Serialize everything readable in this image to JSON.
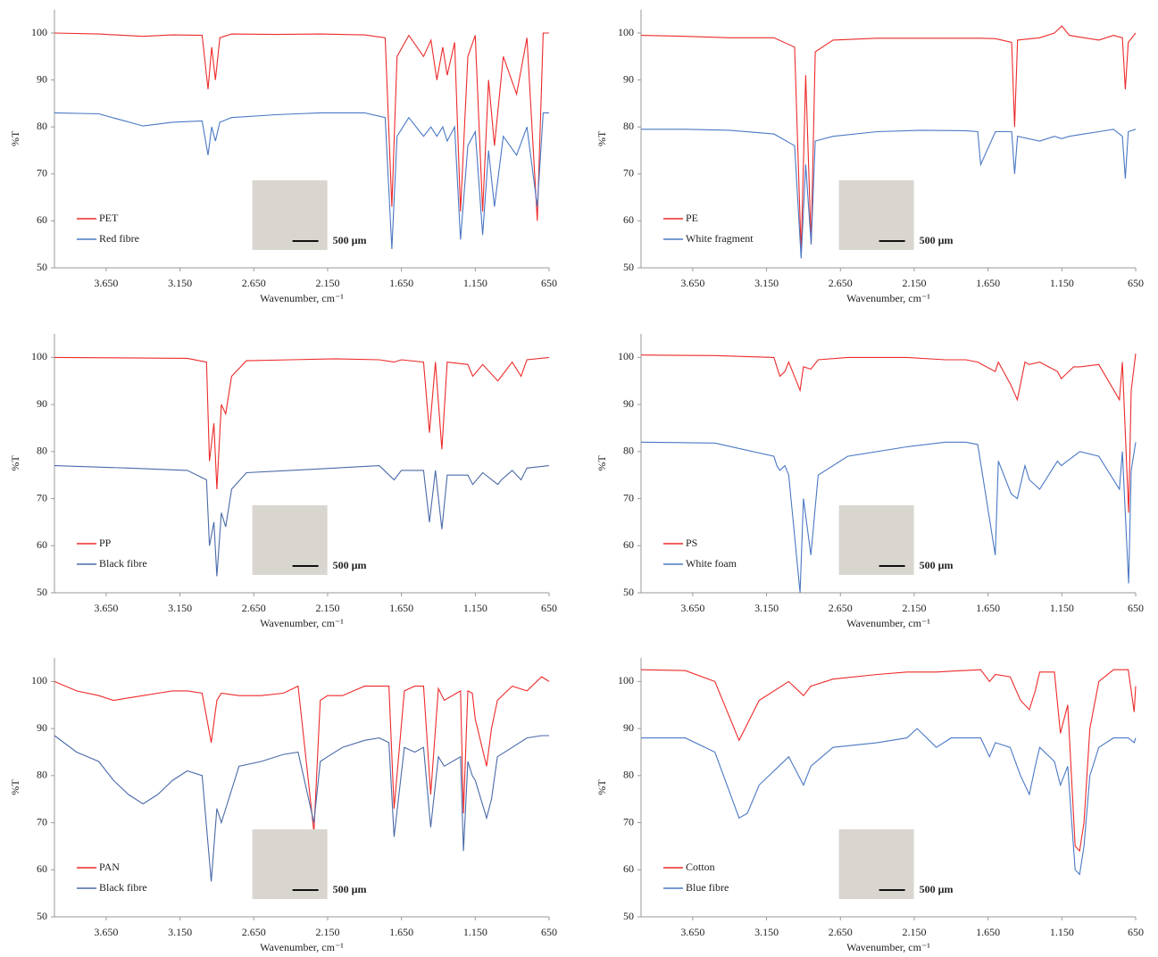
{
  "chart_data": [
    {
      "type": "line",
      "xlabel": "Wavenumber, cm⁻¹",
      "ylabel": "%T",
      "annotation": "500 µm",
      "legend": "lower left",
      "xlim": [
        4000,
        650
      ],
      "ylim": [
        50,
        105
      ],
      "xticks": [
        {
          "value": 3650,
          "label": "3.650"
        },
        {
          "value": 3150,
          "label": "3.150"
        },
        {
          "value": 2650,
          "label": "2.650"
        },
        {
          "value": 2150,
          "label": "2.150"
        },
        {
          "value": 1650,
          "label": "1.650"
        },
        {
          "value": 1150,
          "label": "1.150"
        },
        650
      ],
      "yticks": [
        50,
        60,
        70,
        80,
        90,
        100
      ],
      "x": [
        4000,
        3700,
        3400,
        3200,
        3000,
        2960,
        2935,
        2910,
        2880,
        2800,
        2500,
        2200,
        1900,
        1760,
        1715,
        1680,
        1600,
        1500,
        1450,
        1410,
        1370,
        1340,
        1290,
        1250,
        1200,
        1150,
        1100,
        1060,
        1020,
        960,
        870,
        800,
        730,
        690,
        650
      ],
      "series": [
        {
          "name": "PET",
          "color": "#ee2a2a",
          "values": [
            100,
            99.8,
            99.3,
            99.6,
            99.5,
            88,
            97,
            90,
            99,
            99.8,
            99.7,
            99.8,
            99.6,
            99,
            63,
            95,
            99.5,
            95,
            98.5,
            90,
            97,
            91,
            98,
            62,
            95,
            99.5,
            62,
            90,
            76,
            95,
            87,
            99,
            60,
            100,
            100
          ]
        },
        {
          "name": "Red fibre",
          "color": "#4a78c4",
          "values": [
            83,
            82.8,
            80.2,
            81,
            81.3,
            74,
            80,
            77,
            81,
            82,
            82.6,
            83,
            83,
            82,
            54,
            78,
            82,
            78,
            80,
            78,
            80,
            77,
            80,
            56,
            76,
            79,
            57,
            75,
            63,
            78,
            74,
            80,
            63,
            83,
            83
          ]
        }
      ]
    },
    {
      "type": "line",
      "xlabel": "Wavenumber, cm⁻¹",
      "ylabel": "%T",
      "annotation": "500 µm",
      "legend": "lower left",
      "xlim": [
        4000,
        650
      ],
      "ylim": [
        50,
        105
      ],
      "xticks": [
        {
          "value": 3650,
          "label": "3.650"
        },
        {
          "value": 3150,
          "label": "3.150"
        },
        {
          "value": 2650,
          "label": "2.650"
        },
        {
          "value": 2150,
          "label": "2.150"
        },
        {
          "value": 1650,
          "label": "1.650"
        },
        {
          "value": 1150,
          "label": "1.150"
        },
        650
      ],
      "yticks": [
        50,
        60,
        70,
        80,
        90,
        100
      ],
      "x": [
        4000,
        3700,
        3400,
        3100,
        2960,
        2916,
        2885,
        2848,
        2820,
        2700,
        2400,
        2100,
        1800,
        1720,
        1700,
        1600,
        1490,
        1470,
        1450,
        1300,
        1200,
        1150,
        1100,
        1000,
        900,
        800,
        740,
        720,
        700,
        650
      ],
      "series": [
        {
          "name": "PE",
          "color": "#ee2a2a",
          "values": [
            99.5,
            99.3,
            99,
            99,
            97,
            53,
            91,
            55,
            96,
            98.5,
            98.9,
            98.9,
            98.9,
            98.9,
            98.9,
            98.8,
            98,
            80,
            98.5,
            99,
            100,
            101.5,
            99.5,
            99,
            98.5,
            99.5,
            99,
            88,
            98,
            100
          ]
        },
        {
          "name": "White fragment",
          "color": "#4a78c4",
          "values": [
            79.5,
            79.5,
            79.3,
            78.5,
            76,
            52,
            72,
            55,
            77,
            78,
            79,
            79.3,
            79.2,
            79,
            72,
            79,
            79,
            70,
            78,
            77,
            78,
            77.5,
            78,
            78.5,
            79,
            79.5,
            78,
            69,
            79,
            79.5
          ]
        }
      ]
    },
    {
      "type": "line",
      "xlabel": "Wavenumber, cm⁻¹",
      "ylabel": "%T",
      "annotation": "500 µm",
      "legend": "lower left",
      "xlim": [
        4000,
        650
      ],
      "ylim": [
        50,
        105
      ],
      "xticks": [
        {
          "value": 3650,
          "label": "3.650"
        },
        {
          "value": 3150,
          "label": "3.150"
        },
        {
          "value": 2650,
          "label": "2.650"
        },
        {
          "value": 2150,
          "label": "2.150"
        },
        {
          "value": 1650,
          "label": "1.650"
        },
        {
          "value": 1150,
          "label": "1.150"
        },
        650
      ],
      "yticks": [
        50,
        60,
        70,
        80,
        90,
        100
      ],
      "x": [
        4000,
        3500,
        3100,
        2970,
        2950,
        2920,
        2900,
        2870,
        2840,
        2800,
        2700,
        2400,
        2100,
        1800,
        1700,
        1650,
        1500,
        1460,
        1420,
        1376,
        1340,
        1200,
        1167,
        1100,
        997,
        973,
        900,
        840,
        800,
        650
      ],
      "series": [
        {
          "name": "PP",
          "color": "#ee2a2a",
          "values": [
            100,
            99.9,
            99.8,
            99,
            78,
            86,
            72,
            90,
            88,
            96,
            99.3,
            99.5,
            99.7,
            99.5,
            99,
            99.5,
            99,
            84,
            99,
            80.5,
            99,
            98.5,
            96,
            98.5,
            95,
            96,
            99,
            96,
            99.5,
            100
          ]
        },
        {
          "name": "Black fibre",
          "color": "#4a6aa8",
          "values": [
            77,
            76.5,
            76,
            74,
            60,
            65,
            53.5,
            67,
            64,
            72,
            75.5,
            76,
            76.5,
            77,
            74,
            76,
            76,
            65,
            76,
            63.5,
            75,
            75,
            73,
            75.5,
            73,
            74,
            76,
            74,
            76.5,
            77
          ]
        }
      ]
    },
    {
      "type": "line",
      "xlabel": "Wavenumber, cm⁻¹",
      "ylabel": "%T",
      "annotation": "500 µm",
      "legend": "lower left",
      "xlim": [
        4000,
        650
      ],
      "ylim": [
        50,
        105
      ],
      "xticks": [
        {
          "value": 3650,
          "label": "3.650"
        },
        {
          "value": 3150,
          "label": "3.150"
        },
        {
          "value": 2650,
          "label": "2.650"
        },
        {
          "value": 2150,
          "label": "2.150"
        },
        {
          "value": 1650,
          "label": "1.650"
        },
        {
          "value": 1150,
          "label": "1.150"
        },
        650
      ],
      "yticks": [
        50,
        60,
        70,
        80,
        90,
        100
      ],
      "x": [
        4000,
        3500,
        3100,
        3080,
        3060,
        3026,
        3000,
        2923,
        2900,
        2850,
        2800,
        2600,
        2200,
        1940,
        1800,
        1720,
        1601,
        1580,
        1493,
        1452,
        1400,
        1370,
        1300,
        1180,
        1154,
        1070,
        1028,
        900,
        760,
        740,
        698,
        680,
        650
      ],
      "series": [
        {
          "name": "PS",
          "color": "#ee2a2a",
          "values": [
            100.5,
            100.4,
            100,
            98,
            96,
            97,
            99,
            93,
            98,
            97.5,
            99.5,
            100,
            100,
            99.5,
            99.5,
            99,
            97,
            99,
            94,
            91,
            99,
            98.5,
            99,
            97,
            95.5,
            98,
            98,
            98.5,
            91,
            99,
            67,
            93,
            100.8
          ]
        },
        {
          "name": "White foam",
          "color": "#4a78c4",
          "values": [
            82,
            81.8,
            79,
            77,
            76,
            77,
            75,
            50,
            70,
            58,
            75,
            79,
            81,
            82,
            82,
            81.5,
            58,
            78,
            71,
            70,
            77,
            74,
            72,
            78,
            77,
            79,
            80,
            79,
            72,
            80,
            52,
            76,
            82
          ]
        }
      ]
    },
    {
      "type": "line",
      "xlabel": "Wavenumber, cm⁻¹",
      "ylabel": "%T",
      "annotation": "500 µm",
      "legend": "lower left",
      "xlim": [
        4000,
        650
      ],
      "ylim": [
        50,
        105
      ],
      "xticks": [
        {
          "value": 3650,
          "label": "3.650"
        },
        {
          "value": 3150,
          "label": "3.150"
        },
        {
          "value": 2650,
          "label": "2.650"
        },
        {
          "value": 2150,
          "label": "2.150"
        },
        {
          "value": 1650,
          "label": "1.650"
        },
        {
          "value": 1150,
          "label": "1.150"
        },
        650
      ],
      "yticks": [
        50,
        60,
        70,
        80,
        90,
        100
      ],
      "x": [
        4000,
        3850,
        3700,
        3600,
        3500,
        3400,
        3300,
        3200,
        3100,
        3000,
        2938,
        2900,
        2870,
        2750,
        2600,
        2450,
        2350,
        2243,
        2200,
        2150,
        2050,
        1900,
        1800,
        1735,
        1700,
        1630,
        1560,
        1500,
        1452,
        1400,
        1360,
        1250,
        1230,
        1200,
        1170,
        1150,
        1073,
        1040,
        1000,
        900,
        800,
        700,
        650
      ],
      "series": [
        {
          "name": "PAN",
          "color": "#ee2a2a",
          "values": [
            100,
            98,
            97,
            96,
            96.5,
            97,
            97.5,
            98,
            98,
            97.5,
            87,
            96,
            97.5,
            97,
            97,
            97.5,
            99,
            68,
            96,
            97,
            97,
            99,
            99,
            99,
            73,
            98,
            99,
            99,
            76,
            98.5,
            96,
            98,
            72,
            98,
            97.5,
            92,
            82,
            90,
            96,
            99,
            98,
            101,
            100
          ]
        },
        {
          "name": "Black fibre",
          "color": "#4a6aa8",
          "values": [
            88.5,
            85,
            83,
            79,
            76,
            74,
            76,
            79,
            81,
            80,
            57.5,
            73,
            70,
            82,
            83,
            84.5,
            85,
            70,
            83,
            84,
            86,
            87.5,
            88,
            87,
            67,
            86,
            85,
            86,
            69,
            84,
            82,
            84,
            64,
            83,
            80,
            79,
            71,
            75,
            84,
            86,
            88,
            88.5,
            88.5
          ]
        }
      ]
    },
    {
      "type": "line",
      "xlabel": "Wavenumber, cm⁻¹",
      "ylabel": "%T",
      "annotation": "500 µm",
      "legend": "lower left",
      "xlim": [
        4000,
        650
      ],
      "ylim": [
        50,
        105
      ],
      "xticks": [
        {
          "value": 3650,
          "label": "3.650"
        },
        {
          "value": 3150,
          "label": "3.150"
        },
        {
          "value": 2650,
          "label": "2.650"
        },
        {
          "value": 2150,
          "label": "2.150"
        },
        {
          "value": 1650,
          "label": "1.650"
        },
        {
          "value": 1150,
          "label": "1.150"
        },
        650
      ],
      "yticks": [
        50,
        60,
        70,
        80,
        90,
        100
      ],
      "x": [
        4000,
        3700,
        3500,
        3336,
        3280,
        3200,
        3000,
        2900,
        2850,
        2700,
        2400,
        2200,
        2130,
        2000,
        1900,
        1700,
        1640,
        1600,
        1500,
        1430,
        1370,
        1330,
        1300,
        1200,
        1160,
        1110,
        1060,
        1030,
        1000,
        960,
        900,
        800,
        700,
        660,
        650
      ],
      "series": [
        {
          "name": "Cotton",
          "color": "#ee2a2a",
          "values": [
            102.5,
            102.3,
            100,
            87.5,
            91,
            96,
            100,
            97,
            99,
            100.5,
            101.5,
            102,
            102,
            102,
            102.2,
            102.5,
            100,
            101.5,
            101,
            96,
            94,
            98,
            102,
            102,
            89,
            95,
            65,
            64,
            70,
            90,
            100,
            102.5,
            102.5,
            93.5,
            99
          ]
        },
        {
          "name": "Blue fibre",
          "color": "#4a78c4",
          "values": [
            88,
            88,
            85,
            71,
            72,
            78,
            84,
            78,
            82,
            86,
            87,
            88,
            90,
            86,
            88,
            88,
            84,
            87,
            86,
            80,
            76,
            82,
            86,
            83,
            78,
            82,
            60,
            59,
            65,
            80,
            86,
            88,
            88,
            87,
            88
          ]
        }
      ]
    }
  ]
}
